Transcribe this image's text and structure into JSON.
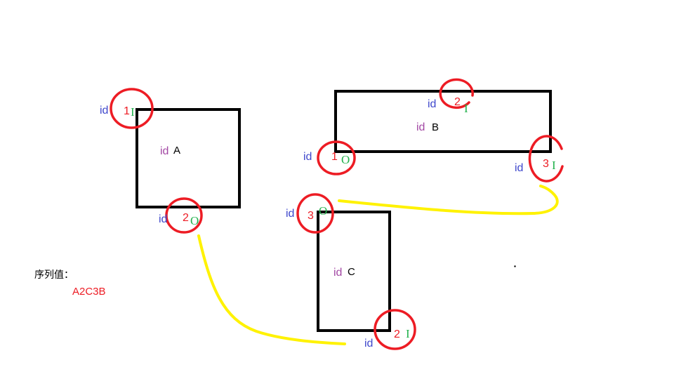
{
  "nodes": [
    {
      "id_label": "id",
      "name": "A",
      "ports": [
        {
          "id_label": "id",
          "number": "1",
          "direction": "I"
        },
        {
          "id_label": "id",
          "number": "2",
          "direction": "O"
        }
      ]
    },
    {
      "id_label": "id",
      "name": "B",
      "ports": [
        {
          "id_label": "id",
          "number": "1",
          "direction": "O"
        },
        {
          "id_label": "id",
          "number": "2",
          "direction": "I"
        },
        {
          "id_label": "id",
          "number": "3",
          "direction": "I"
        }
      ]
    },
    {
      "id_label": "id",
      "name": "C",
      "ports": [
        {
          "id_label": "id",
          "number": "2",
          "direction": "I"
        },
        {
          "id_label": "id",
          "number": "3",
          "direction": "O"
        }
      ]
    }
  ],
  "sequence": {
    "label": "序列值：",
    "value": "A2C3B"
  },
  "colors": {
    "box": "#000000",
    "node_id": "#a349a4",
    "node_name": "#000000",
    "port_id": "#3f48cc",
    "port_number": "#ed1c24",
    "port_direction": "#22b14c",
    "port_marker": "#ed1c24",
    "link": "#fff200",
    "sequence_label": "#000000",
    "sequence_value": "#ed1c24"
  }
}
